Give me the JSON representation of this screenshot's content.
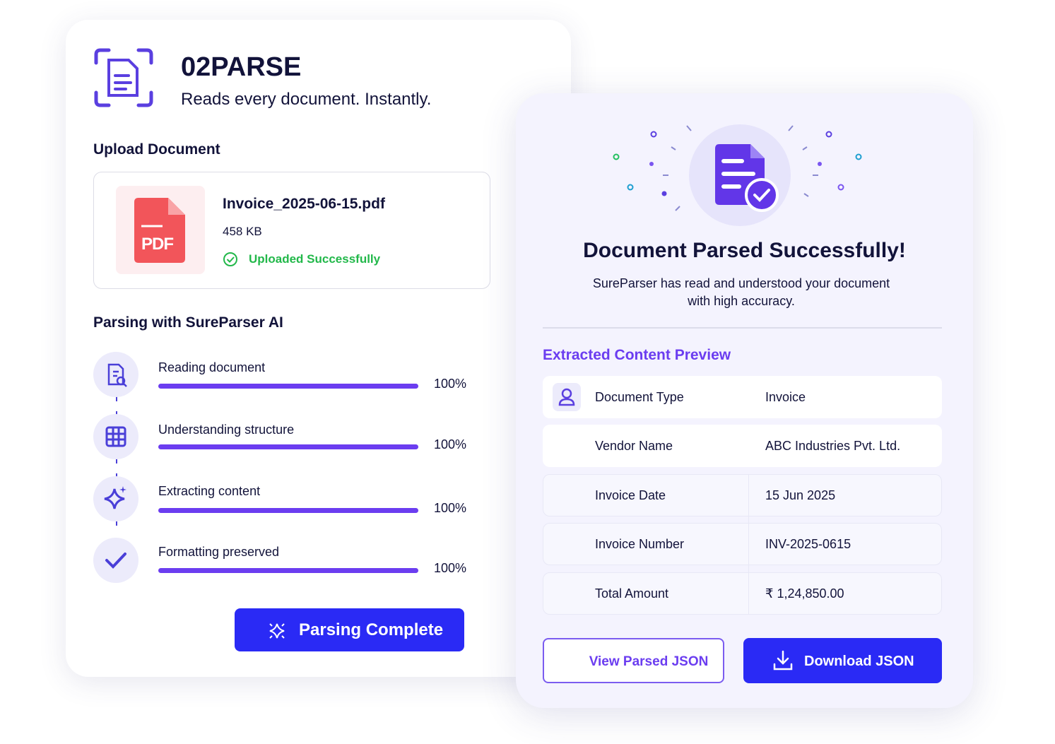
{
  "brand": {
    "name": "02PARSE",
    "tagline": "Reads every document. Instantly."
  },
  "upload": {
    "heading": "Upload Document",
    "icon_label": "PDF",
    "file_name": "Invoice_2025-06-15.pdf",
    "file_size": "458 KB",
    "status": "Uploaded Successfully"
  },
  "parsing": {
    "heading": "Parsing with SureParser AI",
    "steps": [
      {
        "label": "Reading document",
        "progress": "100%"
      },
      {
        "label": "Understanding structure",
        "progress": "100%"
      },
      {
        "label": "Extracting content",
        "progress": "100%"
      },
      {
        "label": "Formatting preserved",
        "progress": "100%"
      }
    ],
    "button": "Parsing Complete"
  },
  "result": {
    "title": "Document Parsed Successfully!",
    "message": "SureParser has read and understood your document with high accuracy.",
    "preview_heading": "Extracted Content Preview",
    "fields": [
      {
        "label": "Document Type",
        "value": "Invoice"
      },
      {
        "label": "Vendor Name",
        "value": "ABC Industries Pvt. Ltd."
      },
      {
        "label": "Invoice Date",
        "value": "15 Jun 2025"
      },
      {
        "label": "Invoice Number",
        "value": "INV-2025-0615"
      },
      {
        "label": "Total Amount",
        "value": "₹ 1,24,850.00"
      }
    ],
    "buttons": {
      "view": "View Parsed JSON",
      "download": "Download JSON"
    }
  }
}
